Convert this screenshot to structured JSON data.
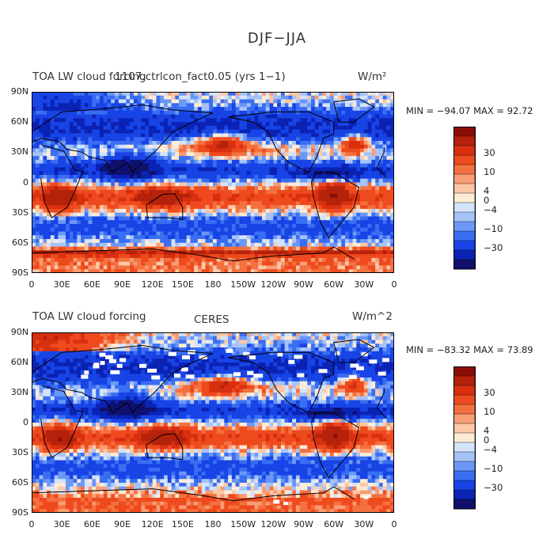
{
  "figure_title": "DJF−JJA",
  "colors": {
    "levels": [
      "#10106e",
      "#0b23b4",
      "#1844e6",
      "#3a6ef2",
      "#6b97f7",
      "#a6c3f8",
      "#d3e3fb",
      "#fcebd5",
      "#fcc7a6",
      "#f89c74",
      "#f4703f",
      "#ee4a1e",
      "#d8300f",
      "#b4220b",
      "#8c0d08"
    ],
    "coast": "#000000"
  },
  "colorbar_labels": [
    "30",
    "10",
    "4",
    "0",
    "−4",
    "−10",
    "−30"
  ],
  "lat_ticks": [
    "90N",
    "60N",
    "30N",
    "0",
    "30S",
    "60S",
    "90S"
  ],
  "lon_ticks": [
    "0",
    "30E",
    "60E",
    "90E",
    "120E",
    "150E",
    "180",
    "150W",
    "120W",
    "90W",
    "60W",
    "30W",
    "0"
  ],
  "panels": [
    {
      "title": "TOA LW cloud forcing",
      "overlay_title": "1107.ctrlcon_fact0.05 (yrs 1−1)",
      "units": "W/m²",
      "stats": "MIN = −94.07 MAX =  92.72"
    },
    {
      "title": "TOA LW cloud forcing",
      "overlay_title": "CERES",
      "units": "W/m^2",
      "stats": "MIN = −83.32 MAX =  73.89"
    }
  ],
  "chart_data": [
    {
      "type": "heatmap",
      "title": "TOA LW cloud forcing — 1107.ctrlcon_fact0.05 (yrs 1−1)",
      "units": "W/m²",
      "xlabel": "",
      "ylabel": "",
      "xlim": [
        0,
        360
      ],
      "ylim": [
        -90,
        90
      ],
      "min": -94.07,
      "max": 92.72,
      "contour_levels": [
        -30,
        -10,
        -4,
        0,
        4,
        10,
        30
      ]
    },
    {
      "type": "heatmap",
      "title": "TOA LW cloud forcing — CERES",
      "units": "W/m^2",
      "xlabel": "",
      "ylabel": "",
      "xlim": [
        0,
        360
      ],
      "ylim": [
        -90,
        90
      ],
      "min": -83.32,
      "max": 73.89,
      "contour_levels": [
        -30,
        -10,
        -4,
        0,
        4,
        10,
        30
      ]
    }
  ]
}
